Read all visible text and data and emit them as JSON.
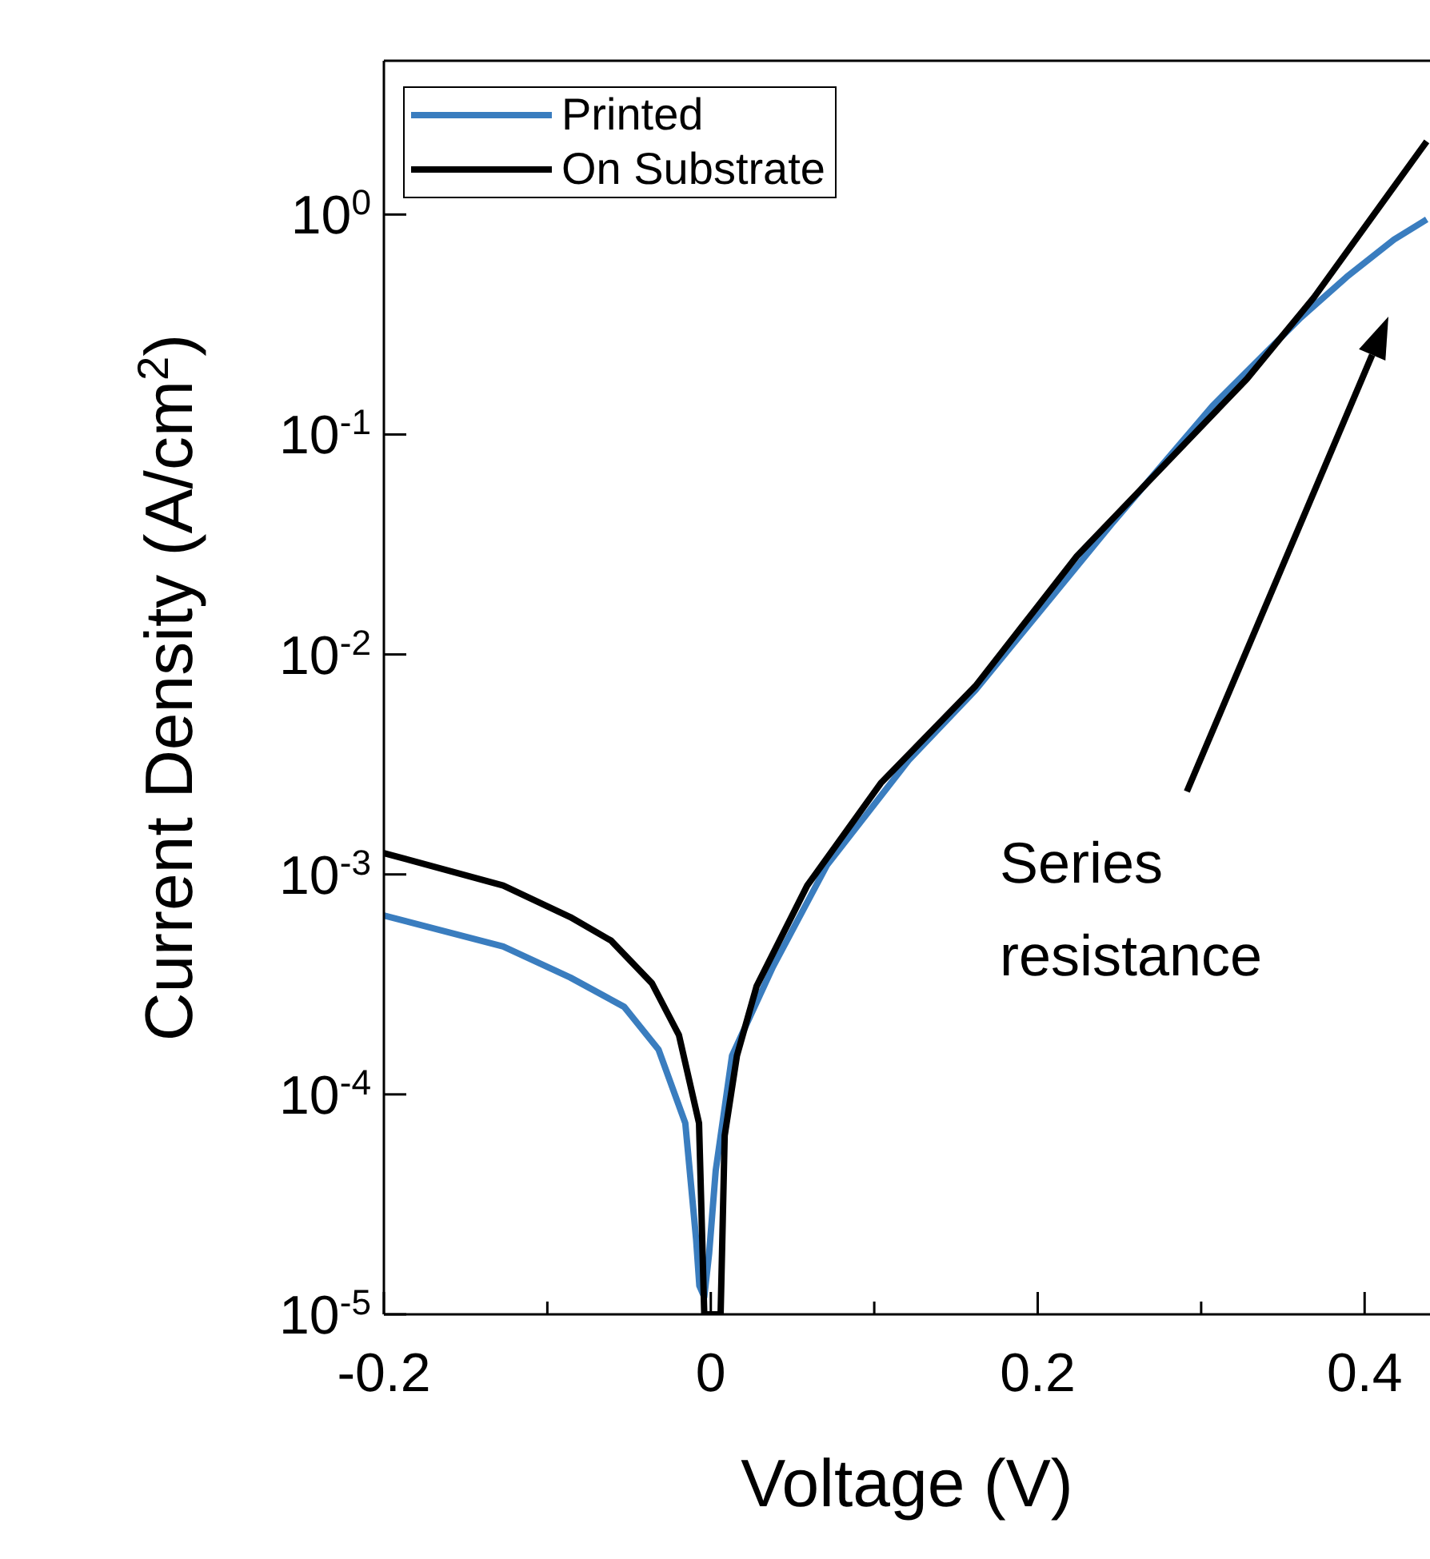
{
  "chart_data": {
    "type": "line",
    "xlabel": "Voltage (V)",
    "ylabel": "Current Density (A/cm$^{2}$)",
    "log": "y",
    "xlim": [
      -0.2,
      0.44
    ],
    "xticks": [
      -0.2,
      {
        "value": -0.1,
        "label": null
      },
      0,
      {
        "value": 0.1,
        "label": null
      },
      0.2,
      {
        "value": 0.3,
        "label": null
      },
      0.4
    ],
    "ylim": [
      1e-05,
      5
    ],
    "yticks": [
      {
        "value": 1e-05,
        "label": "10$^{-5}$"
      },
      {
        "value": 0.0001,
        "label": "10$^{-4}$"
      },
      {
        "value": 0.001,
        "label": "10$^{-3}$"
      },
      {
        "value": 0.01,
        "label": "10$^{-2}$"
      },
      {
        "value": 0.1,
        "label": "10$^{-1}$"
      },
      {
        "value": 1,
        "label": "10$^{0}$"
      }
    ],
    "grid": false,
    "legend": "top left",
    "marker": "none",
    "line_style": "solid",
    "annotations": [
      "Series resistance"
    ],
    "series": [
      {
        "name": "Printed",
        "color": "#3a7dbf",
        "x": [
          -0.2,
          -0.127,
          -0.086,
          -0.053,
          -0.032,
          -0.0156,
          -0.009,
          -0.007,
          -0.004,
          -0.001,
          0.003,
          0.013,
          0.038,
          0.071,
          0.121,
          0.162,
          0.245,
          0.307,
          0.361,
          0.389,
          0.418,
          0.438
        ],
        "values": [
          0.00065,
          0.00047,
          0.00034,
          0.00025,
          0.00016,
          7.4e-05,
          2.2e-05,
          1.35e-05,
          1.2e-05,
          1.9e-05,
          4.5e-05,
          0.00015,
          0.00038,
          0.0011,
          0.0033,
          0.0069,
          0.039,
          0.135,
          0.34,
          0.52,
          0.77,
          0.95
        ]
      },
      {
        "name": "On Substrate",
        "color": "#000000",
        "x": [
          -0.2,
          -0.127,
          -0.086,
          -0.061,
          -0.036,
          -0.0195,
          -0.0072,
          -0.004,
          0.006,
          0.0085,
          0.016,
          0.028,
          0.059,
          0.104,
          0.162,
          0.224,
          0.328,
          0.369,
          0.438
        ],
        "values": [
          0.00125,
          0.00089,
          0.00064,
          0.0005,
          0.00032,
          0.000186,
          7.4e-05,
          1e-05,
          1e-05,
          6.5e-05,
          0.00015,
          0.00031,
          0.00089,
          0.0026,
          0.0072,
          0.028,
          0.179,
          0.42,
          2.15
        ]
      }
    ]
  }
}
